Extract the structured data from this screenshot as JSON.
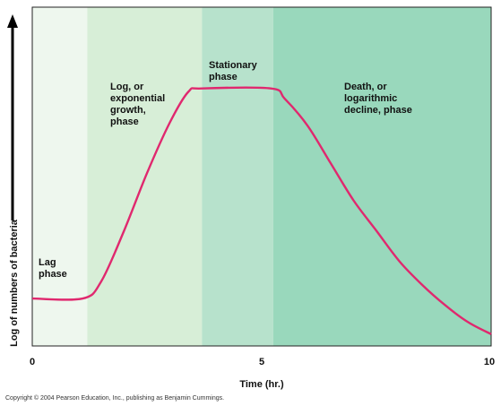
{
  "chart_data": {
    "type": "line",
    "title": "",
    "xlabel": "Time (hr.)",
    "ylabel": "Log of numbers of bacteria",
    "x_ticks": [
      {
        "value": 0,
        "label": "0"
      },
      {
        "value": 5,
        "label": "5"
      },
      {
        "value": 10,
        "label": "10"
      }
    ],
    "xlim": [
      0,
      10
    ],
    "ylim": [
      0,
      10
    ],
    "grid": false,
    "legend": "none",
    "phases": [
      {
        "label": "Lag\nphase",
        "x_start": 0,
        "x_end": 1.2,
        "color": "#eef7ee"
      },
      {
        "label": "Log, or\nexponential\ngrowth,\nphase",
        "x_start": 1.2,
        "x_end": 3.7,
        "color": "#d7eed7"
      },
      {
        "label": "Stationary\nphase",
        "x_start": 3.7,
        "x_end": 5.25,
        "color": "#b7e2cc"
      },
      {
        "label": "Death, or\nlogarithmic\ndecline, phase",
        "x_start": 5.25,
        "x_end": 10,
        "color": "#99d8bc"
      }
    ],
    "series": [
      {
        "color": "#e0286e",
        "x": [
          0,
          1.1,
          1.5,
          2.0,
          2.5,
          3.0,
          3.4,
          3.7,
          5.2,
          5.5,
          6.0,
          6.5,
          7.0,
          7.5,
          8.0,
          8.5,
          9.0,
          9.5,
          10.0
        ],
        "y": [
          1.4,
          1.4,
          1.9,
          3.4,
          5.1,
          6.6,
          7.5,
          7.6,
          7.6,
          7.3,
          6.5,
          5.4,
          4.3,
          3.4,
          2.5,
          1.8,
          1.2,
          0.7,
          0.35
        ]
      }
    ]
  },
  "copyright": "Copyright © 2004 Pearson Education, Inc., publishing as Benjamin Cummings."
}
